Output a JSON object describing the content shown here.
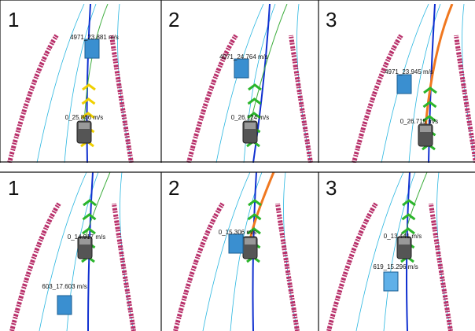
{
  "panels": [
    {
      "number": "1",
      "labels": [
        "4971_23.881 m/s",
        "0_25.866 m/s"
      ]
    },
    {
      "number": "2",
      "labels": [
        "4971_24.764 m/s",
        "0_26.124 m/s"
      ]
    },
    {
      "number": "3",
      "labels": [
        "4971_23.945 m/s",
        "0_26.715 m/s"
      ]
    },
    {
      "number": "1",
      "labels": [
        "0_14.917 m/s",
        "603_17.603 m/s"
      ]
    },
    {
      "number": "2",
      "labels": [
        "0_15.306 m/s"
      ]
    },
    {
      "number": "3",
      "labels": [
        "0_13.441 m/s",
        "619_15.296 m/s"
      ]
    }
  ]
}
